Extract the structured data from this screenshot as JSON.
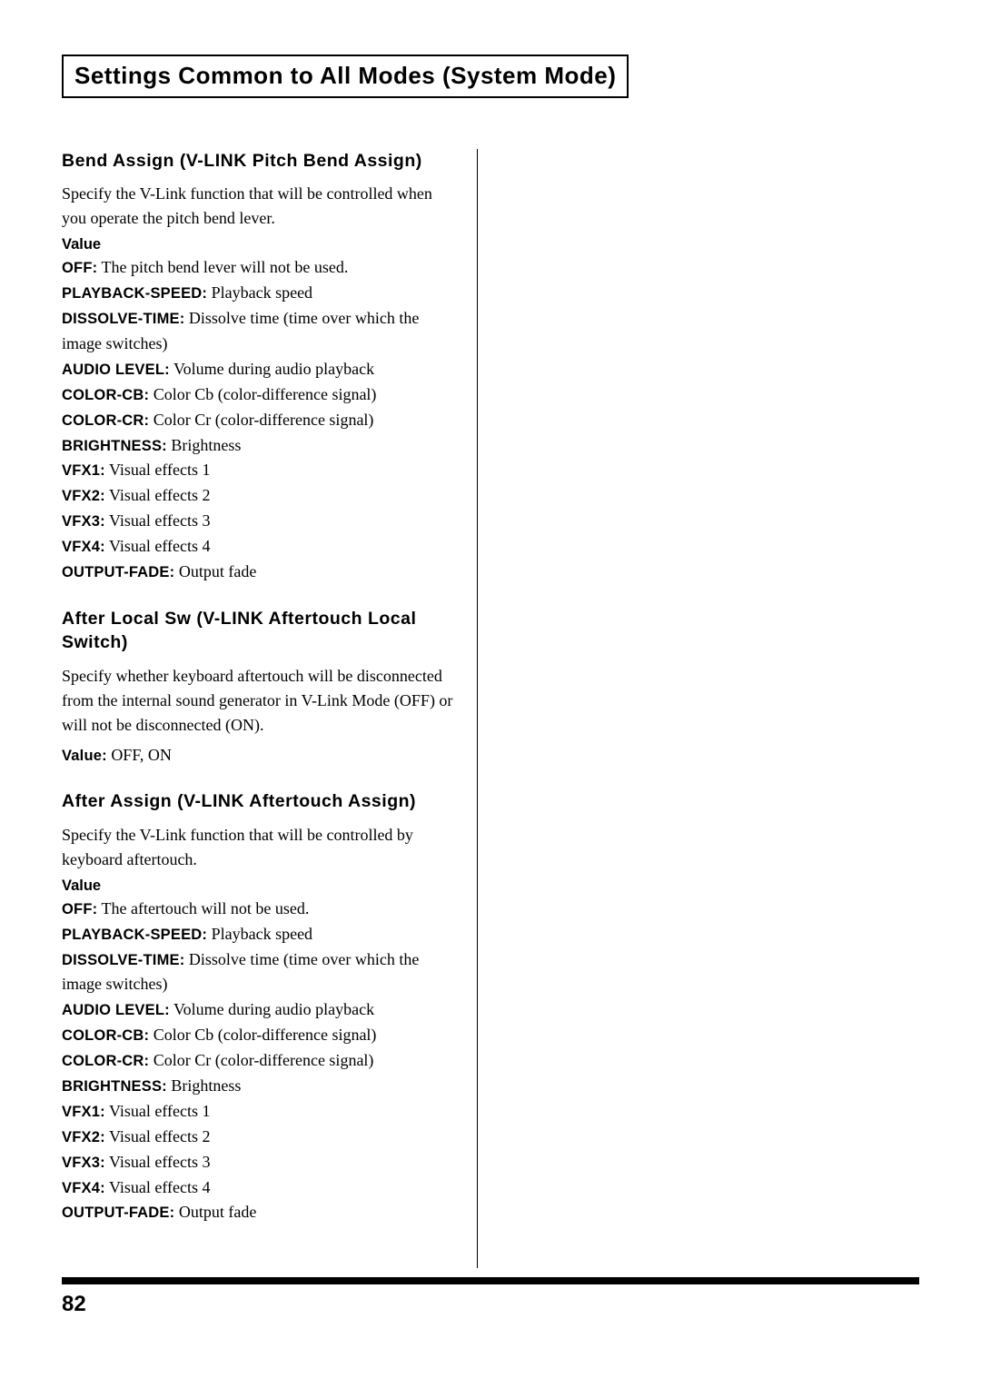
{
  "page_title": "Settings Common to All Modes (System Mode)",
  "page_number": "82",
  "sections": [
    {
      "title": "Bend Assign (V-LINK Pitch Bend Assign)",
      "intro": "Specify the V-Link function that will be controlled when you operate the pitch bend lever.",
      "value_label": "Value",
      "items": [
        {
          "k": "OFF:",
          "v": " The pitch bend lever will not be used."
        },
        {
          "k": "PLAYBACK-SPEED:",
          "v": " Playback speed"
        },
        {
          "k": "DISSOLVE-TIME:",
          "v": " Dissolve time (time over which the image switches)"
        },
        {
          "k": "AUDIO LEVEL:",
          "v": " Volume during audio playback"
        },
        {
          "k": "COLOR-CB:",
          "v": " Color Cb (color-difference signal)"
        },
        {
          "k": "COLOR-CR:",
          "v": " Color Cr (color-difference signal)"
        },
        {
          "k": "BRIGHTNESS:",
          "v": " Brightness"
        },
        {
          "k": "VFX1:",
          "v": " Visual effects 1"
        },
        {
          "k": "VFX2:",
          "v": " Visual effects 2"
        },
        {
          "k": "VFX3:",
          "v": " Visual effects 3"
        },
        {
          "k": "VFX4:",
          "v": " Visual effects 4"
        },
        {
          "k": "OUTPUT-FADE:",
          "v": " Output fade"
        }
      ]
    },
    {
      "title": "After Local Sw (V-LINK Aftertouch Local Switch)",
      "intro": "Specify whether keyboard aftertouch will be disconnected from the internal sound generator in V-Link Mode (OFF) or will not be disconnected (ON).",
      "value_inline": {
        "k": "Value:",
        "v": " OFF, ON"
      }
    },
    {
      "title": "After Assign (V-LINK Aftertouch Assign)",
      "intro": "Specify the V-Link function that will be controlled by keyboard aftertouch.",
      "value_label": "Value",
      "items": [
        {
          "k": "OFF:",
          "v": " The aftertouch will not be used."
        },
        {
          "k": "PLAYBACK-SPEED:",
          "v": " Playback speed"
        },
        {
          "k": "DISSOLVE-TIME:",
          "v": " Dissolve time (time over which the image switches)"
        },
        {
          "k": "AUDIO LEVEL:",
          "v": " Volume during audio playback"
        },
        {
          "k": "COLOR-CB:",
          "v": " Color Cb (color-difference signal)"
        },
        {
          "k": "COLOR-CR:",
          "v": " Color Cr (color-difference signal)"
        },
        {
          "k": "BRIGHTNESS:",
          "v": " Brightness"
        },
        {
          "k": "VFX1:",
          "v": " Visual effects 1"
        },
        {
          "k": "VFX2:",
          "v": " Visual effects 2"
        },
        {
          "k": "VFX3:",
          "v": " Visual effects 3"
        },
        {
          "k": "VFX4:",
          "v": " Visual effects 4"
        },
        {
          "k": "OUTPUT-FADE:",
          "v": " Output fade"
        }
      ]
    }
  ]
}
